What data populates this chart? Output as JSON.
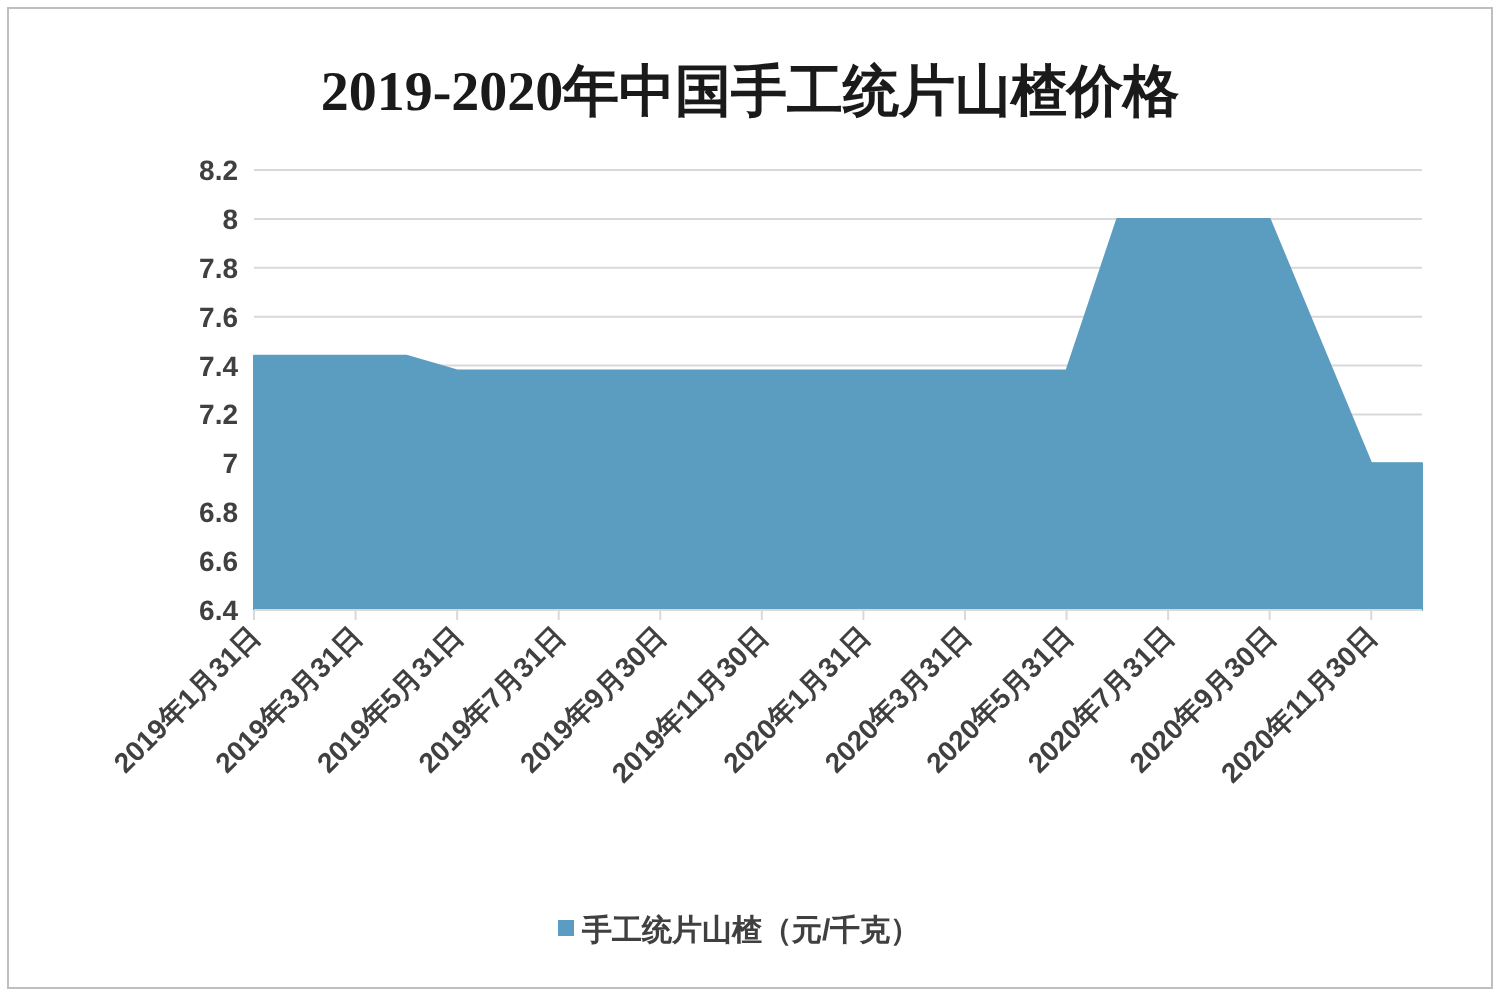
{
  "chart_data": {
    "type": "area",
    "title": "2019-2020年中国手工统片山楂价格",
    "categories": [
      "2019年1月31日",
      null,
      "2019年3月31日",
      null,
      "2019年5月31日",
      null,
      "2019年7月31日",
      null,
      "2019年9月30日",
      null,
      "2019年11月30日",
      null,
      "2020年1月31日",
      null,
      "2020年3月31日",
      null,
      "2020年5月31日",
      null,
      "2020年7月31日",
      null,
      "2020年9月30日",
      null,
      "2020年11月30日",
      null
    ],
    "series": [
      {
        "name": "手工统片山楂（元/千克）",
        "color": "#5b9dc0",
        "values": [
          7.44,
          7.44,
          7.44,
          7.44,
          7.38,
          7.38,
          7.38,
          7.38,
          7.38,
          7.38,
          7.38,
          7.38,
          7.38,
          7.38,
          7.38,
          7.38,
          7.38,
          8.0,
          8.0,
          8.0,
          8.0,
          7.5,
          7.0,
          7.0
        ]
      }
    ],
    "ylim": [
      6.4,
      8.2
    ],
    "yticks": [
      6.4,
      6.6,
      6.8,
      7,
      7.2,
      7.4,
      7.6,
      7.8,
      8,
      8.2
    ],
    "grid": "y",
    "legend": "bottom"
  }
}
